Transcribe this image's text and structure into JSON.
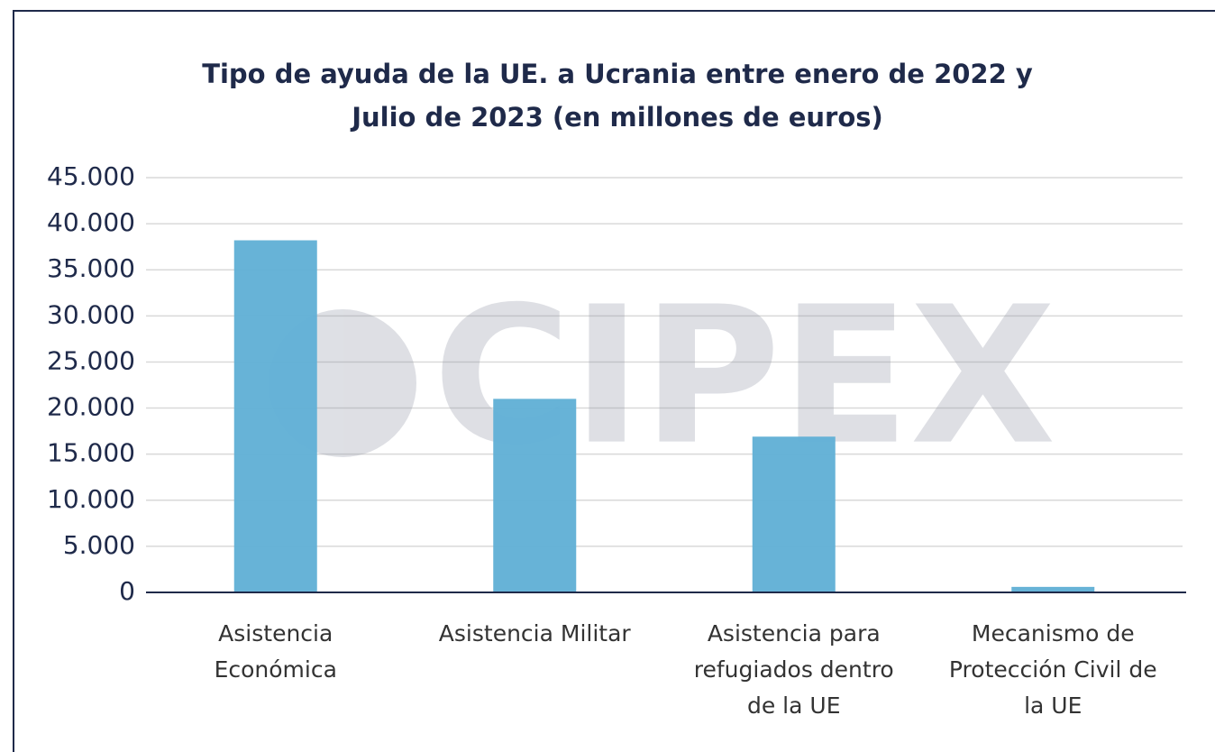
{
  "chart_data": {
    "type": "bar",
    "title": "Tipo de ayuda de la UE. a Ucrania entre enero de 2022 y Julio de 2023 (en millones de euros)",
    "watermark": "CIPEX",
    "categories": [
      "Asistencia Económica",
      "Asistencia Militar",
      "Asistencia para refugiados dentro de la UE",
      "Mecanismo de Protección Civil de la UE"
    ],
    "values": [
      38200,
      21000,
      16900,
      600
    ],
    "color": "#62b1d6",
    "ylim": [
      0,
      45000
    ],
    "yticks": [
      0,
      {
        "value": 5000,
        "label": "5.000"
      },
      {
        "value": 10000,
        "label": "10.000"
      },
      {
        "value": 15000,
        "label": "15.000"
      },
      {
        "value": 20000,
        "label": "20.000"
      },
      {
        "value": 25000,
        "label": "25.000"
      },
      {
        "value": 30000,
        "label": "30.000"
      },
      {
        "value": 35000,
        "label": "35.000"
      },
      {
        "value": 40000,
        "label": "40.000"
      },
      {
        "value": 45000,
        "label": "45.000"
      }
    ],
    "grid": true
  }
}
